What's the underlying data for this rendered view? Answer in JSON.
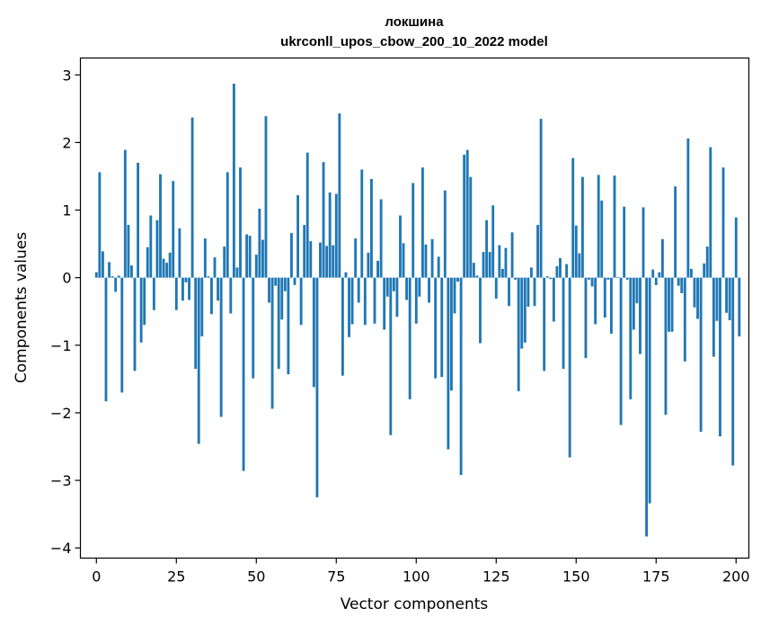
{
  "chart_data": {
    "type": "bar",
    "title": "локшина",
    "subtitle": "ukrconll_upos_cbow_200_10_2022 model",
    "xlabel": "Vector components",
    "ylabel": "Components values",
    "xlim": [
      -5,
      204
    ],
    "ylim": [
      -4.15,
      3.25
    ],
    "xticks": [
      0,
      25,
      50,
      75,
      100,
      125,
      150,
      175,
      200
    ],
    "yticks": [
      -4,
      -3,
      -2,
      -1,
      0,
      1,
      2,
      3
    ],
    "bar_color": "#1f77b4",
    "values": [
      0.08,
      1.56,
      0.39,
      -1.83,
      0.23,
      0.02,
      -0.21,
      0.03,
      -1.7,
      1.89,
      0.78,
      0.18,
      -1.38,
      1.7,
      -0.96,
      -0.7,
      0.45,
      0.92,
      -0.48,
      0.85,
      1.53,
      0.28,
      0.22,
      0.37,
      1.43,
      -0.48,
      0.73,
      -0.34,
      -0.07,
      -0.33,
      2.37,
      -1.35,
      -2.46,
      -0.87,
      0.58,
      0.02,
      -0.54,
      0.3,
      -0.34,
      -2.06,
      0.46,
      1.56,
      -0.53,
      2.87,
      0.15,
      1.63,
      -2.86,
      0.64,
      0.62,
      -1.49,
      0.34,
      1.02,
      0.56,
      2.39,
      -0.37,
      -1.94,
      -0.12,
      -1.35,
      -0.62,
      -0.2,
      -1.43,
      0.66,
      -0.11,
      1.22,
      -0.7,
      0.78,
      1.85,
      0.54,
      -1.62,
      -3.25,
      0.52,
      1.71,
      0.47,
      1.26,
      0.48,
      1.24,
      2.43,
      -1.45,
      0.08,
      -0.88,
      -0.69,
      0.58,
      -0.37,
      1.6,
      -0.7,
      0.37,
      1.46,
      -0.68,
      0.25,
      1.16,
      -0.77,
      -0.28,
      -2.33,
      -0.2,
      -0.58,
      0.92,
      0.51,
      -0.33,
      -1.8,
      1.4,
      -0.68,
      -0.28,
      1.63,
      0.49,
      -0.37,
      0.57,
      -1.49,
      0.31,
      -1.47,
      1.29,
      -2.54,
      -1.67,
      -0.53,
      -0.06,
      -2.92,
      1.82,
      1.89,
      1.49,
      0.22,
      0.03,
      -0.97,
      0.38,
      0.85,
      0.38,
      1.07,
      -0.31,
      0.48,
      0.13,
      0.44,
      -0.42,
      0.67,
      -0.03,
      -1.68,
      -1.05,
      -0.96,
      -0.43,
      0.15,
      -0.42,
      0.78,
      2.35,
      -1.38,
      0.02,
      -0.02,
      -0.65,
      0.17,
      0.29,
      -1.35,
      0.2,
      -2.66,
      1.77,
      0.77,
      0.36,
      1.49,
      -1.19,
      -0.03,
      -0.13,
      -0.69,
      1.52,
      1.14,
      -0.59,
      -0.03,
      -0.83,
      1.51,
      0.01,
      -2.18,
      1.05,
      -0.03,
      -1.8,
      -0.77,
      -0.38,
      -1.13,
      1.04,
      -3.83,
      -3.34,
      0.12,
      -0.11,
      0.08,
      0.57,
      -2.03,
      -0.8,
      -0.8,
      1.35,
      -0.12,
      -0.23,
      -1.24,
      2.06,
      0.13,
      -0.44,
      -0.61,
      -2.28,
      0.21,
      0.46,
      1.93,
      -1.17,
      -0.64,
      -2.35,
      1.63,
      -0.52,
      -0.63,
      -2.78,
      0.89,
      -0.87
    ]
  }
}
